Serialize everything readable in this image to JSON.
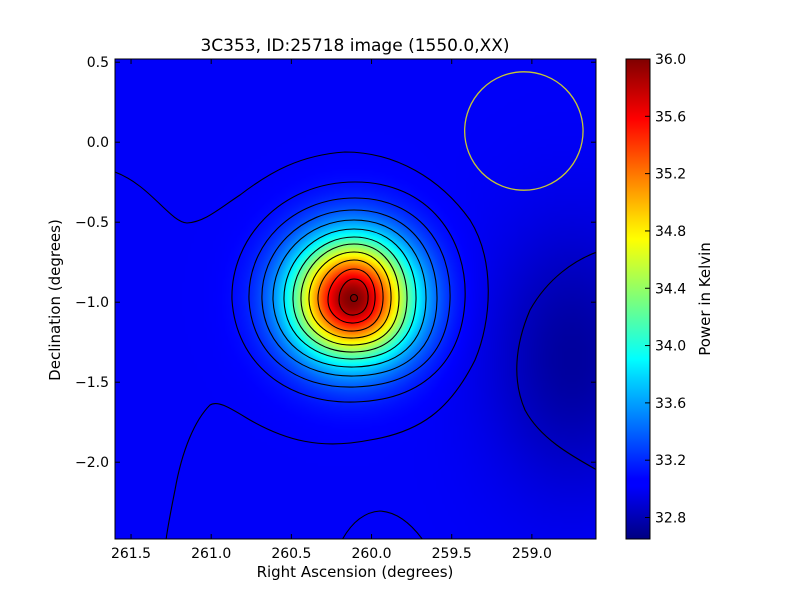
{
  "chart_data": {
    "type": "heatmap",
    "title": "3C353, ID:25718 image (1550.0,XX)",
    "xlabel": "Right Ascension (degrees)",
    "ylabel": "Declination (degrees)",
    "colorbar_label": "Power in Kelvin",
    "colormap": "jet",
    "xlim": [
      261.6,
      258.6
    ],
    "ylim": [
      -2.48,
      0.52
    ],
    "x_ticks": [
      261.5,
      261.0,
      260.5,
      260.0,
      259.5,
      259.0
    ],
    "x_tick_labels": [
      "261.5",
      "261.0",
      "260.5",
      "260.0",
      "259.5",
      "259.0"
    ],
    "y_ticks": [
      0.5,
      0.0,
      -0.5,
      -1.0,
      -1.5,
      -2.0
    ],
    "y_tick_labels": [
      "0.5",
      "0.0",
      "−0.5",
      "−1.0",
      "−1.5",
      "−2.0"
    ],
    "colorbar_range": [
      32.65,
      36.0
    ],
    "colorbar_ticks": [
      36.0,
      35.6,
      35.2,
      34.8,
      34.4,
      34.0,
      33.6,
      33.2,
      32.8
    ],
    "colorbar_tick_labels": [
      "36.0",
      "35.6",
      "35.2",
      "34.8",
      "34.4",
      "34.0",
      "33.6",
      "33.2",
      "32.8"
    ],
    "peak": {
      "ra": 260.12,
      "dec": -0.98,
      "value": 36.0
    },
    "background_level": 33.05,
    "beam_circle": {
      "ra": 259.05,
      "dec": 0.07,
      "radius_deg": 0.37,
      "color": "#c8c832"
    },
    "contour_color": "#000000"
  }
}
